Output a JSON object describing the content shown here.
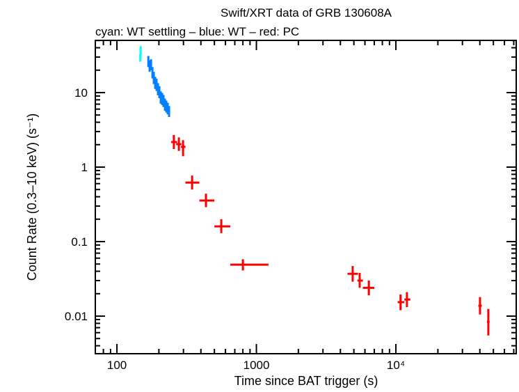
{
  "chart_data": {
    "type": "scatter",
    "title": "Swift/XRT data of GRB 130608A",
    "subtitle": "cyan: WT settling – blue: WT – red: PC",
    "xlabel": "Time since BAT trigger (s)",
    "ylabel": "Count Rate (0.3–10 keV) (s⁻¹)",
    "xscale": "log",
    "yscale": "log",
    "xlim": [
      70,
      72900
    ],
    "ylim": [
      0.00313,
      50.2
    ],
    "grid": false,
    "x_ticks": [
      {
        "value": 100,
        "label": "100"
      },
      {
        "value": 1000,
        "label": "1000"
      },
      {
        "value": 10000,
        "label": "10⁴"
      }
    ],
    "y_ticks": [
      {
        "value": 0.01,
        "label": "0.01"
      },
      {
        "value": 0.1,
        "label": "0.1"
      },
      {
        "value": 1,
        "label": "1"
      },
      {
        "value": 10,
        "label": "10"
      }
    ],
    "point_format": [
      "x",
      "x_lo",
      "x_hi",
      "y",
      "y_lo",
      "y_hi"
    ],
    "series": [
      {
        "mode": "WT settling",
        "color": "#00ffff",
        "points": [
          [
            147,
            146,
            148,
            29,
            26,
            33
          ],
          [
            148,
            147,
            149,
            37,
            32,
            42
          ]
        ]
      },
      {
        "mode": "WT",
        "color": "#0080ff",
        "points": [
          [
            168,
            167,
            169,
            26.3,
            22,
            31
          ],
          [
            171.6,
            170.5,
            172.7,
            22.6,
            19,
            27
          ],
          [
            175.6,
            174.5,
            176.7,
            24,
            20,
            28
          ],
          [
            179.7,
            178.6,
            180.8,
            18.6,
            15.5,
            22
          ],
          [
            183.8,
            182.7,
            184.9,
            15.7,
            13,
            19
          ],
          [
            188.1,
            187,
            189.2,
            13.5,
            11.2,
            16.3
          ],
          [
            192.4,
            191.3,
            193.5,
            12.7,
            10.5,
            15.3
          ],
          [
            196.9,
            195.8,
            198,
            11.1,
            9.2,
            13.4
          ],
          [
            201.5,
            200.4,
            202.6,
            10.1,
            8.4,
            12.2
          ],
          [
            206.2,
            205.1,
            207.3,
            8.6,
            7.1,
            10.4
          ],
          [
            211,
            209.9,
            212.1,
            8.2,
            6.8,
            9.9
          ],
          [
            215.9,
            214.8,
            217,
            7.7,
            6.4,
            9.3
          ],
          [
            220.9,
            219.8,
            222,
            6.9,
            5.7,
            8.3
          ],
          [
            226,
            224.9,
            227.1,
            6.5,
            5.4,
            7.8
          ],
          [
            231.3,
            230.2,
            232.4,
            6.1,
            5.1,
            7.3
          ],
          [
            236.6,
            235.5,
            237.7,
            5.6,
            4.7,
            6.6
          ]
        ]
      },
      {
        "mode": "PC",
        "color": "#ff0000",
        "points": [
          [
            256,
            245,
            270,
            2.17,
            1.75,
            2.7
          ],
          [
            278,
            266,
            290,
            2.03,
            1.65,
            2.5
          ],
          [
            298,
            288,
            310,
            1.87,
            1.4,
            2.3
          ],
          [
            346,
            310,
            390,
            0.62,
            0.5,
            0.77
          ],
          [
            435,
            390,
            500,
            0.356,
            0.29,
            0.44
          ],
          [
            560,
            500,
            650,
            0.16,
            0.13,
            0.2
          ],
          [
            800,
            650,
            1220,
            0.049,
            0.041,
            0.058
          ],
          [
            4900,
            4500,
            5350,
            0.037,
            0.029,
            0.047
          ],
          [
            5500,
            5300,
            5800,
            0.03,
            0.024,
            0.038
          ],
          [
            6400,
            5800,
            7000,
            0.024,
            0.019,
            0.03
          ],
          [
            10800,
            10300,
            11500,
            0.0154,
            0.012,
            0.0195
          ],
          [
            12000,
            11500,
            12700,
            0.0167,
            0.0132,
            0.021
          ],
          [
            40100,
            39000,
            41300,
            0.0138,
            0.0105,
            0.018
          ],
          [
            46000,
            45000,
            47000,
            0.0084,
            0.0055,
            0.0125
          ]
        ]
      }
    ]
  }
}
